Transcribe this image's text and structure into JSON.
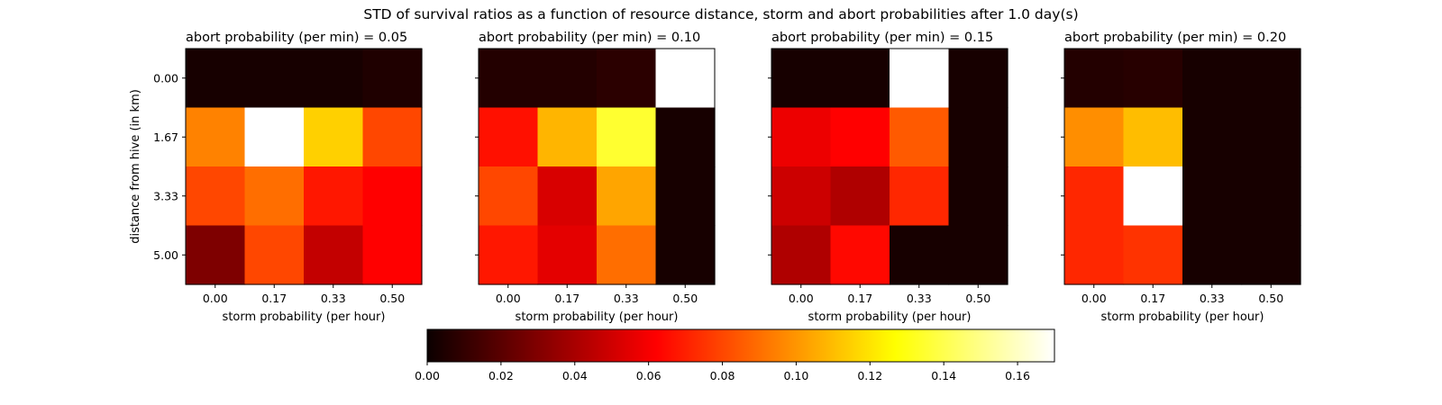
{
  "chart_data": {
    "type": "heatmap",
    "title": "STD of survival ratios as a function of resource distance, storm and abort probabilities after 1.0 day(s)",
    "xlabel": "storm probability (per hour)",
    "ylabel": "distance from hive (in km)",
    "x_tick_labels": [
      "0.00",
      "0.17",
      "0.33",
      "0.50"
    ],
    "y_tick_labels": [
      "0.00",
      "1.67",
      "3.33",
      "5.00"
    ],
    "colormap": "hot",
    "color_range": [
      0.0,
      0.17
    ],
    "colorbar_ticks": [
      "0.00",
      "0.02",
      "0.04",
      "0.06",
      "0.08",
      "0.10",
      "0.12",
      "0.14",
      "0.16"
    ],
    "panels": [
      {
        "title": "abort probability (per min) = 0.05",
        "values": [
          [
            0.003,
            0.003,
            0.003,
            0.005
          ],
          [
            0.095,
            0.17,
            0.115,
            0.08
          ],
          [
            0.08,
            0.09,
            0.068,
            0.06
          ],
          [
            0.028,
            0.08,
            0.045,
            0.062
          ]
        ]
      },
      {
        "title": "abort probability (per min) = 0.10",
        "values": [
          [
            0.006,
            0.006,
            0.008,
            0.17
          ],
          [
            0.066,
            0.108,
            0.135,
            0.003
          ],
          [
            0.08,
            0.05,
            0.104,
            0.003
          ],
          [
            0.068,
            0.053,
            0.09,
            0.003
          ]
        ]
      },
      {
        "title": "abort probability (per min) = 0.15",
        "values": [
          [
            0.003,
            0.003,
            0.17,
            0.003
          ],
          [
            0.055,
            0.062,
            0.085,
            0.003
          ],
          [
            0.047,
            0.04,
            0.072,
            0.003
          ],
          [
            0.04,
            0.064,
            0.003,
            0.003
          ]
        ]
      },
      {
        "title": "abort probability (per min) = 0.20",
        "values": [
          [
            0.006,
            0.007,
            0.003,
            0.003
          ],
          [
            0.098,
            0.11,
            0.003,
            0.003
          ],
          [
            0.072,
            0.17,
            0.003,
            0.003
          ],
          [
            0.072,
            0.075,
            0.003,
            0.003
          ]
        ]
      }
    ],
    "legend": "none",
    "grid": false
  }
}
